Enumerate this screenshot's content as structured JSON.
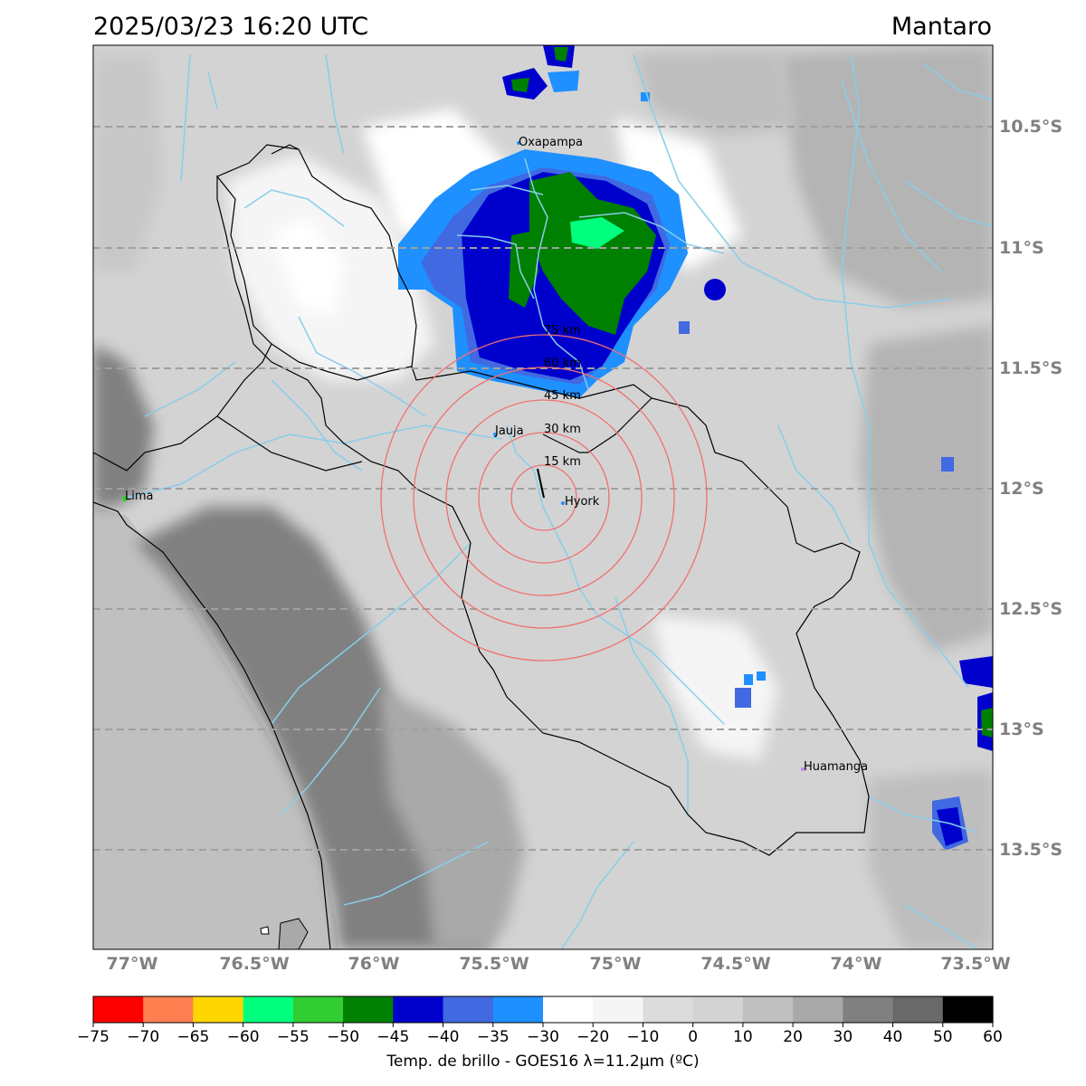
{
  "title": {
    "datetime": "2025/03/23 16:20 UTC",
    "region": "Mantaro"
  },
  "latitude_labels": [
    "10.5°S",
    "11°S",
    "11.5°S",
    "12°S",
    "12.5°S",
    "13°S",
    "13.5°S"
  ],
  "longitude_labels": [
    "77°W",
    "76.5°W",
    "76°W",
    "75.5°W",
    "75°W",
    "74.5°W",
    "74°W",
    "73.5°W"
  ],
  "cities": [
    {
      "name": "Oxapampa"
    },
    {
      "name": "Jauja"
    },
    {
      "name": "Lima"
    },
    {
      "name": "Hyork"
    },
    {
      "name": "Huamanga"
    }
  ],
  "range_rings": [
    "15 km",
    "30 km",
    "45 km",
    "60 km",
    "75 km"
  ],
  "colorbar": {
    "label": "Temp. de brillo - GOES16 λ=11.2μm (ºC)",
    "ticks": [
      "−75",
      "−70",
      "−65",
      "−60",
      "−55",
      "−50",
      "−45",
      "−40",
      "−35",
      "−30",
      "−20",
      "−10",
      "0",
      "10",
      "20",
      "30",
      "40",
      "50",
      "60"
    ],
    "colors": [
      "#ff0000",
      "#ff7f50",
      "#ffd700",
      "#00ff7f",
      "#32cd32",
      "#008000",
      "#0000cd",
      "#4169e1",
      "#1e90ff",
      "#ffffff",
      "#f5f5f5",
      "#dcdcdc",
      "#d3d3d3",
      "#c0c0c0",
      "#a9a9a9",
      "#808080",
      "#696969",
      "#000000"
    ]
  }
}
